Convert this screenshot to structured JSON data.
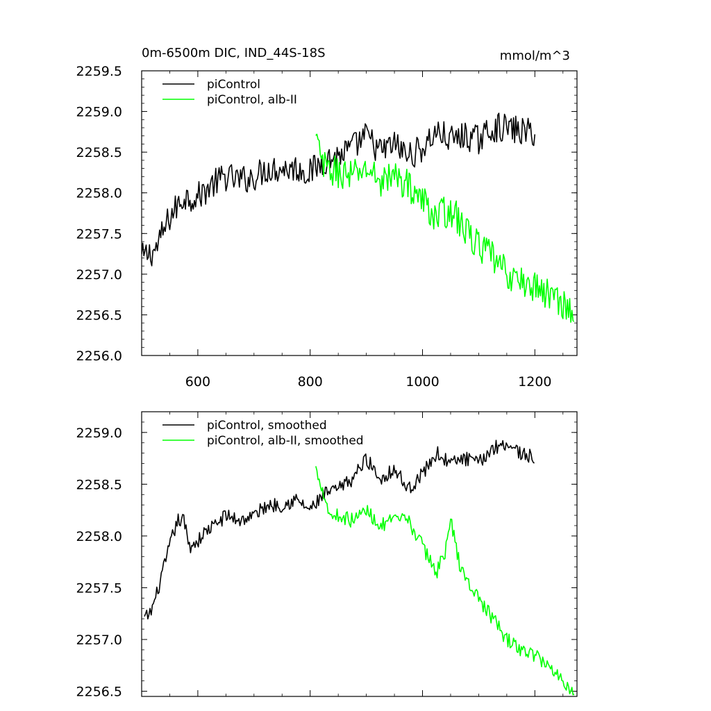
{
  "chart_data": [
    {
      "type": "line",
      "title": "0m-6500m DIC, IND_44S-18S",
      "units": "mmol/m^3",
      "xlim": [
        500,
        1275
      ],
      "ylim": [
        2256.0,
        2259.5
      ],
      "x_ticks": [
        600,
        800,
        1000,
        1200
      ],
      "y_ticks": [
        2256.0,
        2256.5,
        2257.0,
        2257.5,
        2258.0,
        2258.5,
        2259.0,
        2259.5
      ],
      "x_ticks_labeled": true,
      "legend": "top-left",
      "series": [
        {
          "name": "piControl",
          "color": "#000000",
          "x": [
            500,
            525,
            550,
            575,
            600,
            625,
            650,
            675,
            700,
            725,
            750,
            775,
            800,
            825,
            850,
            875,
            900,
            925,
            950,
            975,
            1000,
            1025,
            1050,
            1075,
            1100,
            1125,
            1150,
            1175,
            1200
          ],
          "y": [
            2257.2,
            2257.3,
            2257.7,
            2257.95,
            2257.95,
            2258.1,
            2258.2,
            2258.15,
            2258.2,
            2258.3,
            2258.3,
            2258.3,
            2258.25,
            2258.4,
            2258.45,
            2258.55,
            2258.7,
            2258.5,
            2258.6,
            2258.45,
            2258.55,
            2258.75,
            2258.65,
            2258.7,
            2258.65,
            2258.8,
            2258.8,
            2258.75,
            2258.75
          ],
          "noise": 0.18
        },
        {
          "name": "piControl, alb-II",
          "color": "#00ff00",
          "x": [
            810,
            825,
            850,
            875,
            900,
            925,
            950,
            975,
            1000,
            1025,
            1050,
            1075,
            1100,
            1125,
            1150,
            1175,
            1200,
            1225,
            1250,
            1270
          ],
          "y": [
            2258.65,
            2258.3,
            2258.25,
            2258.2,
            2258.3,
            2258.15,
            2258.2,
            2258.1,
            2257.9,
            2257.7,
            2257.8,
            2257.55,
            2257.35,
            2257.2,
            2257.0,
            2256.9,
            2256.85,
            2256.75,
            2256.65,
            2256.5
          ],
          "noise": 0.2
        }
      ]
    },
    {
      "type": "line",
      "title": "",
      "units": "",
      "xlim": [
        500,
        1275
      ],
      "ylim": [
        2256.45,
        2259.2
      ],
      "x_ticks": [
        600,
        800,
        1000,
        1200
      ],
      "y_ticks": [
        2256.5,
        2257.0,
        2257.5,
        2258.0,
        2258.5,
        2259.0
      ],
      "x_ticks_labeled": false,
      "legend": "top-left",
      "series": [
        {
          "name": "piControl, smoothed",
          "color": "#000000",
          "x": [
            505,
            515,
            525,
            535,
            545,
            555,
            565,
            575,
            585,
            600,
            615,
            630,
            650,
            675,
            700,
            725,
            750,
            775,
            800,
            825,
            850,
            875,
            900,
            925,
            950,
            975,
            1000,
            1025,
            1050,
            1075,
            1100,
            1125,
            1150,
            1175,
            1200
          ],
          "y": [
            2257.2,
            2257.25,
            2257.4,
            2257.6,
            2257.8,
            2258.0,
            2258.15,
            2258.15,
            2257.9,
            2257.95,
            2258.05,
            2258.1,
            2258.2,
            2258.15,
            2258.2,
            2258.3,
            2258.3,
            2258.35,
            2258.25,
            2258.4,
            2258.45,
            2258.55,
            2258.75,
            2258.55,
            2258.65,
            2258.45,
            2258.6,
            2258.8,
            2258.7,
            2258.75,
            2258.7,
            2258.85,
            2258.9,
            2258.8,
            2258.75
          ],
          "noise": 0.07
        },
        {
          "name": "piControl, alb-II, smoothed",
          "color": "#00ff00",
          "x": [
            810,
            820,
            835,
            850,
            875,
            900,
            925,
            950,
            975,
            1000,
            1025,
            1040,
            1050,
            1065,
            1075,
            1100,
            1125,
            1150,
            1175,
            1200,
            1225,
            1250,
            1270
          ],
          "y": [
            2258.65,
            2258.5,
            2258.2,
            2258.2,
            2258.15,
            2258.25,
            2258.1,
            2258.15,
            2258.15,
            2257.9,
            2257.65,
            2257.85,
            2258.15,
            2257.75,
            2257.6,
            2257.4,
            2257.2,
            2257.0,
            2256.9,
            2256.85,
            2256.75,
            2256.6,
            2256.5
          ],
          "noise": 0.07
        }
      ]
    }
  ]
}
